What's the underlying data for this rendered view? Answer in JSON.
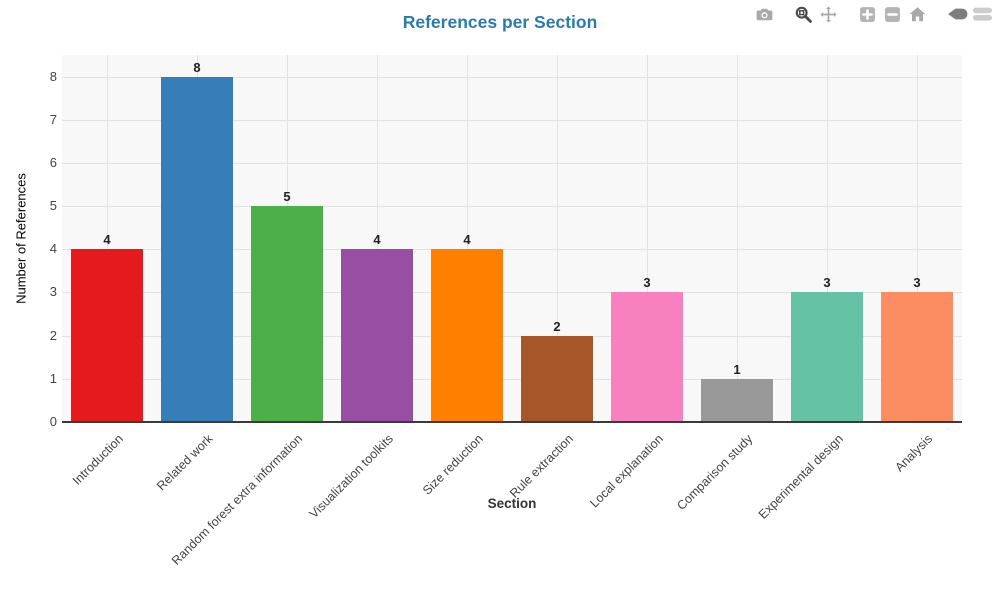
{
  "header": {
    "title": "References per Section",
    "title_color": "#2a7cac"
  },
  "toolbar": {
    "icons": [
      {
        "name": "camera-icon",
        "active": false
      },
      {
        "name": "zoom-icon",
        "active": true
      },
      {
        "name": "pan-icon",
        "active": false
      },
      {
        "name": "zoom-in-icon",
        "active": false
      },
      {
        "name": "zoom-out-icon",
        "active": false
      },
      {
        "name": "home-icon",
        "active": false
      },
      {
        "name": "plotly-logo-icon",
        "active": false
      }
    ],
    "icon_color": "#a9a9a9",
    "icon_active_color": "#4a4a4a"
  },
  "chart_data": {
    "type": "bar",
    "title": "References per Section",
    "xlabel": "Section",
    "ylabel": "Number of References",
    "categories": [
      "Introduction",
      "Related work",
      "Random forest extra information",
      "Visualization toolkits",
      "Size reduction",
      "Rule extraction",
      "Local explanation",
      "Comparison study",
      "Experimental design",
      "Analysis"
    ],
    "values": [
      4,
      8,
      5,
      4,
      4,
      2,
      3,
      1,
      3,
      3
    ],
    "bar_colors": [
      "#e41a1c",
      "#377eb8",
      "#4daf4a",
      "#984ea3",
      "#ff7f00",
      "#a65628",
      "#f781bf",
      "#999999",
      "#66c2a5",
      "#fc8d62"
    ],
    "bar_value_labels": [
      4,
      8,
      5,
      4,
      4,
      2,
      3,
      1,
      3,
      3
    ],
    "yticks": [
      0,
      1,
      2,
      3,
      4,
      5,
      6,
      7,
      8
    ],
    "ylim": [
      0,
      8.5
    ],
    "grid": true,
    "legend_position": "none",
    "xtick_rotation_deg": -45,
    "plot_bg_color": "#f8f8f8",
    "grid_color": "#e2e2e2",
    "axis_line_color": "#3a3a3a",
    "tick_label_color": "#444444"
  }
}
